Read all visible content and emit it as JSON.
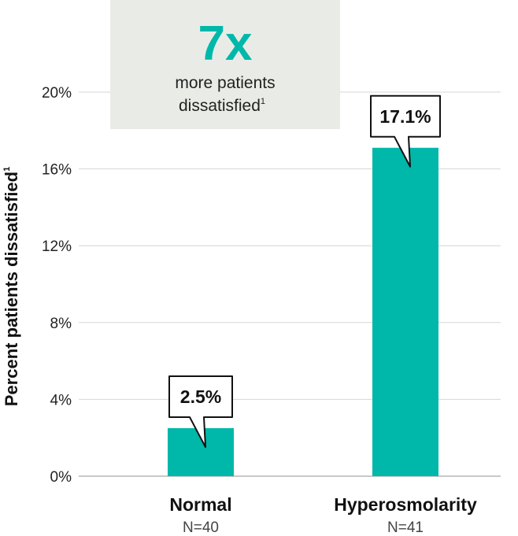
{
  "chart_data": {
    "type": "bar",
    "categories": [
      "Normal",
      "Hyperosmolarity"
    ],
    "category_sublabels": [
      "N=40",
      "N=41"
    ],
    "values": [
      2.5,
      17.1
    ],
    "data_labels": [
      "2.5%",
      "17.1%"
    ],
    "ylabel": "Percent patients dissatisfied",
    "ylabel_superscript": "1",
    "ylim": [
      0,
      20
    ],
    "yticks": [
      0,
      4,
      8,
      12,
      16,
      20
    ],
    "ytick_labels": [
      "0%",
      "4%",
      "8%",
      "12%",
      "16%",
      "20%"
    ],
    "grid": true,
    "bar_color": "#00b8a9"
  },
  "callout": {
    "big_text": "7x",
    "line1": "more patients",
    "line2": "dissatisfied",
    "line2_superscript": "1",
    "background": "#e9ece6"
  }
}
